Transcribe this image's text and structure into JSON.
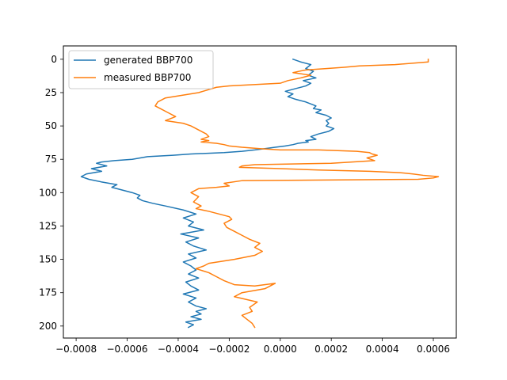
{
  "chart_data": {
    "type": "line",
    "title": "",
    "xlabel": "",
    "ylabel": "",
    "xlim": [
      -0.00085,
      0.00069
    ],
    "ylim": [
      209,
      -10
    ],
    "y_inverted": true,
    "grid": false,
    "legend_position": "upper left",
    "x_ticks": [
      -0.0008,
      -0.0006,
      -0.0004,
      -0.0002,
      0.0,
      0.0002,
      0.0004,
      0.0006
    ],
    "x_tick_labels": [
      "−0.0008",
      "−0.0006",
      "−0.0004",
      "−0.0002",
      "0.0000",
      "0.0002",
      "0.0004",
      "0.0006"
    ],
    "y_ticks": [
      0,
      25,
      50,
      75,
      100,
      125,
      150,
      175,
      200
    ],
    "y_tick_labels": [
      "0",
      "25",
      "50",
      "75",
      "100",
      "125",
      "150",
      "175",
      "200"
    ],
    "series": [
      {
        "name": "generated BBP700",
        "color": "#1f77b4",
        "x": [
          5e-05,
          8e-05,
          0.00012,
          0.0001,
          0.00013,
          0.00011,
          0.00014,
          9e-05,
          0.00012,
          0.0001,
          6e-05,
          2e-05,
          5e-05,
          3e-05,
          6e-05,
          0.0001,
          0.00014,
          0.00013,
          0.00016,
          0.00014,
          0.00018,
          0.0002,
          0.00018,
          0.00019,
          0.00018,
          0.00021,
          0.00019,
          0.00015,
          0.00012,
          0.00014,
          0.0001,
          0.00011,
          7e-05,
          5e-05,
          2e-05,
          -2e-05,
          -6e-05,
          -0.0001,
          -0.00015,
          -0.00022,
          -0.00035,
          -0.00042,
          -0.00052,
          -0.00058,
          -0.00065,
          -0.0007,
          -0.00072,
          -0.00068,
          -0.00074,
          -0.0007,
          -0.00076,
          -0.00078,
          -0.00075,
          -0.0007,
          -0.00064,
          -0.00066,
          -0.00062,
          -0.00058,
          -0.00055,
          -0.00056,
          -0.00054,
          -0.0005,
          -0.00045,
          -0.00038,
          -0.00033,
          -0.00038,
          -0.00034,
          -0.00036,
          -0.0003,
          -0.00039,
          -0.00032,
          -0.00037,
          -0.00034,
          -0.00029,
          -0.00036,
          -0.00033,
          -0.00038,
          -0.00035,
          -0.00033,
          -0.00036,
          -0.00032,
          -0.00037,
          -0.00035,
          -0.00032,
          -0.00038,
          -0.00033,
          -0.00036,
          -0.00033,
          -0.00029,
          -0.00033,
          -0.00031,
          -0.00035,
          -0.00031,
          -0.00037,
          -0.00034,
          -0.00036
        ],
        "y": [
          0,
          2,
          4,
          7,
          9,
          12,
          14,
          16,
          18,
          20,
          22,
          24,
          26,
          28,
          30,
          32,
          35,
          37,
          38,
          40,
          42,
          44,
          46,
          48,
          50,
          52,
          54,
          56,
          58,
          60,
          61,
          62,
          63,
          64,
          65,
          66,
          67,
          68,
          69,
          70,
          71,
          72,
          73,
          75,
          76,
          77,
          78,
          80,
          82,
          84,
          86,
          88,
          90,
          92,
          94,
          96,
          98,
          100,
          102,
          104,
          106,
          108,
          110,
          113,
          116,
          119,
          122,
          125,
          128,
          131,
          134,
          137,
          140,
          143,
          146,
          149,
          152,
          155,
          158,
          161,
          164,
          167,
          170,
          173,
          176,
          179,
          182,
          185,
          187,
          189,
          191,
          193,
          195,
          197,
          199,
          201
        ]
      },
      {
        "name": "measured BBP700",
        "color": "#ff7f0e",
        "x": [
          0.00058,
          0.00058,
          0.00045,
          0.00031,
          0.00025,
          0.00018,
          0.0001,
          5e-05,
          0.00012,
          8e-05,
          3e-05,
          0.0,
          -0.0002,
          -0.00025,
          -0.00032,
          -0.00045,
          -0.00048,
          -0.00049,
          -0.00047,
          -0.00044,
          -0.00041,
          -0.00045,
          -0.00038,
          -0.00035,
          -0.00033,
          -0.00031,
          -0.00029,
          -0.00028,
          -0.00031,
          -0.00028,
          -0.00031,
          -0.00025,
          -0.00022,
          -0.0002,
          -0.00015,
          -8e-05,
          0.0,
          0.00015,
          0.0003,
          0.00035,
          0.00036,
          0.00038,
          0.00034,
          0.00037,
          0.0002,
          -0.0001,
          -0.00015,
          -0.00016,
          0.0,
          0.00015,
          0.00035,
          0.00047,
          0.00052,
          0.00056,
          0.00062,
          0.0006,
          0.00054,
          -0.00015,
          -0.00022,
          -0.0002,
          -0.00025,
          -0.00032,
          -0.00035,
          -0.00032,
          -0.00034,
          -0.00031,
          -0.00033,
          -0.00028,
          -0.00024,
          -0.0002,
          -0.00019,
          -0.00022,
          -0.00021,
          -0.00018,
          -0.00015,
          -0.00012,
          -8e-05,
          -0.0001,
          -7e-05,
          -0.0001,
          -0.00018,
          -0.00028,
          -0.0003,
          -0.00033,
          -0.00028,
          -0.00025,
          -0.00022,
          -0.00018,
          -0.0001,
          -2e-05,
          -6e-05,
          -0.00015,
          -0.00018,
          -9e-05,
          -0.00012,
          -0.00011,
          -0.00015,
          -0.00013,
          -0.00011,
          -0.0001
        ],
        "y": [
          0,
          2,
          4,
          5,
          6,
          7,
          8,
          10,
          12,
          14,
          16,
          18,
          20,
          21,
          25,
          29,
          32,
          35,
          37,
          40,
          43,
          46,
          48,
          50,
          52,
          54,
          56,
          58,
          60,
          61,
          62,
          63,
          64,
          65,
          66,
          67,
          68,
          68,
          69,
          70,
          71,
          72,
          74,
          76,
          78,
          79,
          80,
          81,
          82,
          83,
          84,
          85,
          86,
          87,
          88,
          89,
          90,
          91,
          93,
          95,
          96,
          97,
          100,
          103,
          107,
          110,
          112,
          114,
          116,
          118,
          120,
          123,
          126,
          129,
          132,
          135,
          138,
          141,
          144,
          147,
          150,
          153,
          155,
          157,
          160,
          163,
          166,
          169,
          170,
          168,
          172,
          175,
          178,
          182,
          186,
          189,
          192,
          195,
          198,
          201
        ]
      }
    ]
  }
}
